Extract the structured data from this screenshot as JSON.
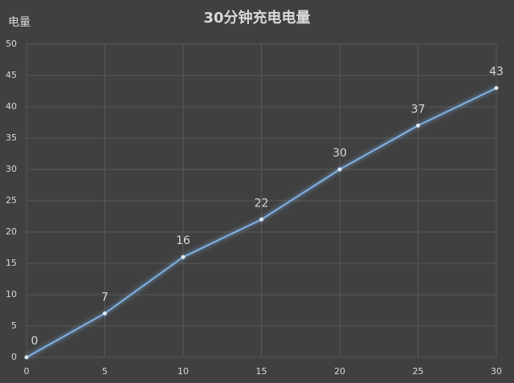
{
  "chart_data": {
    "type": "line",
    "title": "30分钟充电电量",
    "y_label": "电量",
    "x": [
      0,
      5,
      10,
      15,
      20,
      25,
      30
    ],
    "series": [
      {
        "name": "电量",
        "color": "#7fb2e5",
        "values": [
          0,
          7,
          16,
          22,
          30,
          37,
          43
        ]
      }
    ],
    "xlim": [
      0,
      30
    ],
    "xticks": [
      0,
      5,
      10,
      15,
      20,
      25,
      30
    ],
    "ylim": [
      0,
      50
    ],
    "yticks": [
      0,
      5,
      10,
      15,
      20,
      25,
      30,
      35,
      40,
      45,
      50
    ],
    "grid": true,
    "data_labels": true
  }
}
